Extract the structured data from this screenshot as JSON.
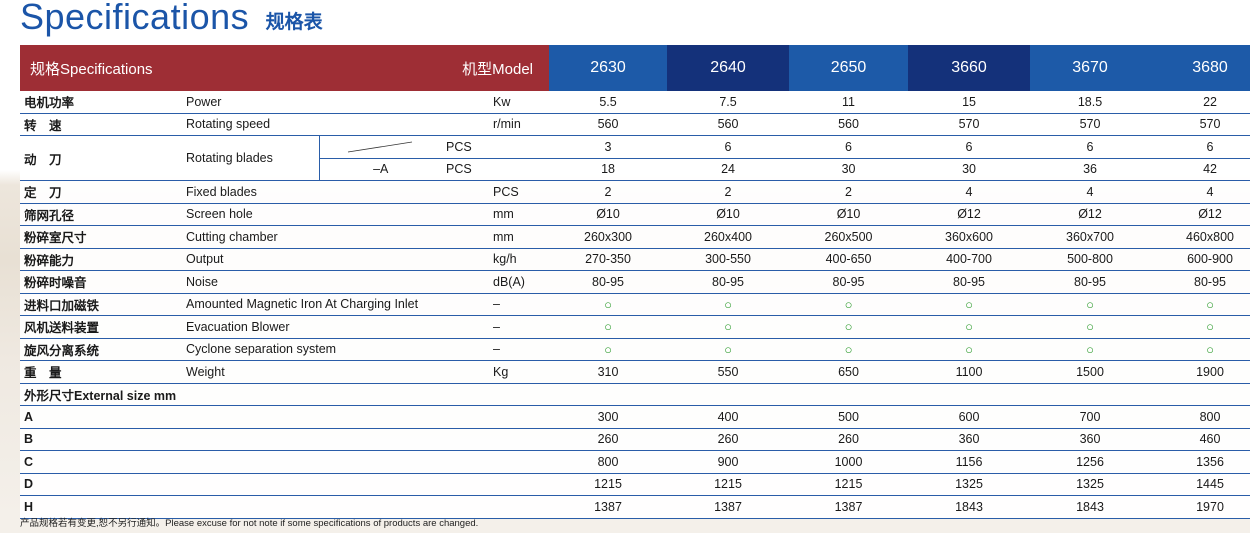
{
  "title": {
    "en": "Specifications",
    "cn": "规格表"
  },
  "header": {
    "spec_label": "规格Specifications",
    "model_label": "机型Model",
    "models": [
      "2630",
      "2640",
      "2650",
      "3660",
      "3670",
      "3680"
    ]
  },
  "rows": [
    {
      "cn": "电机功率",
      "en": "Power",
      "unit": "Kw",
      "values": [
        "5.5",
        "7.5",
        "11",
        "15",
        "18.5",
        "22"
      ]
    },
    {
      "cn": "转　速",
      "en": "Rotating speed",
      "unit": "r/min",
      "values": [
        "560",
        "560",
        "560",
        "570",
        "570",
        "570"
      ]
    },
    {
      "cn": "定　刀",
      "en": "Fixed blades",
      "unit": "PCS",
      "values": [
        "2",
        "2",
        "2",
        "4",
        "4",
        "4"
      ]
    },
    {
      "cn": "筛网孔径",
      "en": "Screen hole",
      "unit": "mm",
      "values": [
        "Ø10",
        "Ø10",
        "Ø10",
        "Ø12",
        "Ø12",
        "Ø12"
      ]
    },
    {
      "cn": "粉碎室尺寸",
      "en": "Cutting chamber",
      "unit": "mm",
      "values": [
        "260x300",
        "260x400",
        "260x500",
        "360x600",
        "360x700",
        "460x800"
      ]
    },
    {
      "cn": "粉碎能力",
      "en": "Output",
      "unit": "kg/h",
      "values": [
        "270-350",
        "300-550",
        "400-650",
        "400-700",
        "500-800",
        "600-900"
      ]
    },
    {
      "cn": "粉碎时噪音",
      "en": "Noise",
      "unit": "dB(A)",
      "values": [
        "80-95",
        "80-95",
        "80-95",
        "80-95",
        "80-95",
        "80-95"
      ]
    },
    {
      "cn": "进料口加磁铁",
      "en": "Amounted Magnetic Iron At Charging Inlet",
      "unit": "–",
      "values": [
        "○",
        "○",
        "○",
        "○",
        "○",
        "○"
      ]
    },
    {
      "cn": "风机送料装置",
      "en": "Evacuation Blower",
      "unit": "–",
      "values": [
        "○",
        "○",
        "○",
        "○",
        "○",
        "○"
      ]
    },
    {
      "cn": "旋风分离系统",
      "en": "Cyclone separation system",
      "unit": "–",
      "values": [
        "○",
        "○",
        "○",
        "○",
        "○",
        "○"
      ]
    },
    {
      "cn": "重　量",
      "en": "Weight",
      "unit": "Kg",
      "values": [
        "310",
        "550",
        "650",
        "1100",
        "1500",
        "1900"
      ]
    }
  ],
  "blades": {
    "cn": "动　刀",
    "en": "Rotating blades",
    "sub_a": "–A",
    "unit": "PCS",
    "values": [
      "3",
      "6",
      "6",
      "6",
      "6",
      "6"
    ],
    "values_a": [
      "18",
      "24",
      "30",
      "30",
      "36",
      "42"
    ]
  },
  "external": {
    "label": "外形尺寸External size  mm",
    "rows": [
      {
        "dim": "A",
        "values": [
          "300",
          "400",
          "500",
          "600",
          "700",
          "800"
        ]
      },
      {
        "dim": "B",
        "values": [
          "260",
          "260",
          "260",
          "360",
          "360",
          "460"
        ]
      },
      {
        "dim": "C",
        "values": [
          "800",
          "900",
          "1000",
          "1156",
          "1256",
          "1356"
        ]
      },
      {
        "dim": "D",
        "values": [
          "1215",
          "1215",
          "1215",
          "1325",
          "1325",
          "1445"
        ]
      },
      {
        "dim": "H",
        "values": [
          "1387",
          "1387",
          "1387",
          "1843",
          "1843",
          "1970"
        ]
      }
    ]
  },
  "footer": "产品规格若有变更,恕不另行通知。Please excuse for not note if some specifications of products are changed.",
  "colors": {
    "title_blue": "#1b55a8",
    "header_red": "#9e2e35",
    "header_blue": "#1d5aa8",
    "header_dark_blue": "#14317a",
    "circle_green": "#2a9a2a"
  }
}
